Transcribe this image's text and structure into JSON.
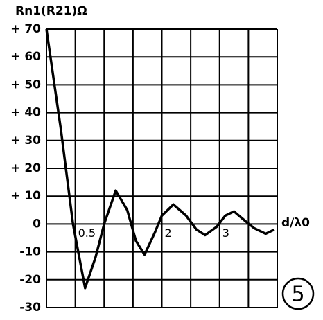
{
  "chart_data": {
    "type": "line",
    "y_label": "Rn1(R21)Ω",
    "x_label": "d/λ0",
    "annotation": "5",
    "x": [
      0,
      0.25,
      0.46,
      0.67,
      0.85,
      1.0,
      1.2,
      1.4,
      1.55,
      1.7,
      1.88,
      2.0,
      2.2,
      2.42,
      2.6,
      2.75,
      2.95,
      3.1,
      3.25,
      3.45,
      3.6,
      3.8,
      3.95
    ],
    "series": [
      {
        "color": "#000000",
        "values": [
          70,
          34,
          0,
          -23,
          -12,
          0,
          12,
          5,
          -6,
          -11,
          -3,
          3,
          7,
          3,
          -2,
          -4,
          -1,
          3,
          4.5,
          1,
          -1.5,
          -3.5,
          -2
        ]
      }
    ],
    "xlim": [
      0,
      4
    ],
    "ylim": [
      -30,
      70
    ],
    "xticks": [
      0.5,
      2,
      3
    ],
    "xgrid": [
      0,
      0.5,
      1,
      1.5,
      2,
      2.5,
      3,
      3.5,
      4
    ],
    "yticks": [
      {
        "value": 70,
        "label": "+ 70"
      },
      {
        "value": 60,
        "label": "+ 60"
      },
      {
        "value": 50,
        "label": "+ 50"
      },
      {
        "value": 40,
        "label": "+ 40"
      },
      {
        "value": 30,
        "label": "+ 30"
      },
      {
        "value": 20,
        "label": "+ 20"
      },
      {
        "value": 10,
        "label": "+ 10"
      },
      0,
      -10,
      -20,
      -30
    ],
    "grid": true
  }
}
